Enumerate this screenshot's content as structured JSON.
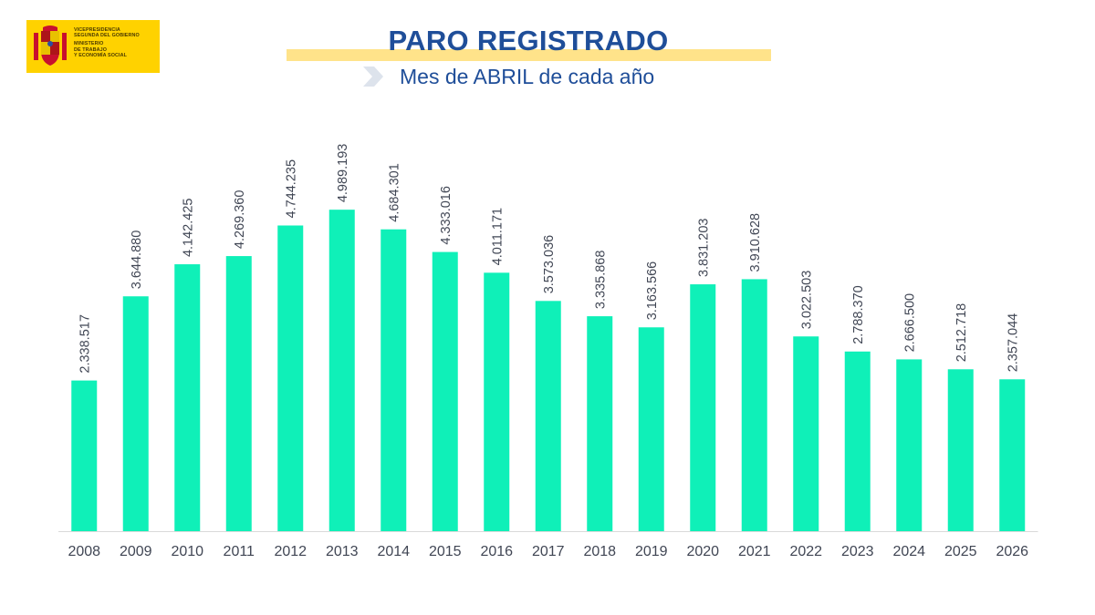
{
  "header": {
    "logo_lines": [
      "VICEPRESIDENCIA",
      "SEGUNDA DEL GOBIERNO",
      "MINISTERIO",
      "DE TRABAJO",
      "Y ECONOMÍA SOCIAL"
    ],
    "title": "PARO REGISTRADO",
    "subtitle": "Mes de ABRIL de cada año"
  },
  "colors": {
    "bar": "#0ff0b8",
    "title": "#1f4e99",
    "logo_bg": "#ffd200",
    "title_band": "#ffe38a",
    "label": "#404654",
    "axis": "#d9d9d9"
  },
  "icons": [
    "spain-coat-of-arms-icon",
    "chevron-right-icon"
  ],
  "chart_data": {
    "type": "bar",
    "title": "PARO REGISTRADO",
    "subtitle": "Mes de ABRIL de cada año",
    "categories": [
      "2008",
      "2009",
      "2010",
      "2011",
      "2012",
      "2013",
      "2014",
      "2015",
      "2016",
      "2017",
      "2018",
      "2019",
      "2020",
      "2021",
      "2022",
      "2023",
      "2024",
      "2025",
      "2026"
    ],
    "values": [
      2338517,
      3644880,
      4142425,
      4269360,
      4744235,
      4989193,
      4684301,
      4333016,
      4011171,
      3573036,
      3335868,
      3163566,
      3831203,
      3910628,
      3022503,
      2788370,
      2666500,
      2512718,
      2357044
    ],
    "value_labels": [
      "2.338.517",
      "3.644.880",
      "4.142.425",
      "4.269.360",
      "4.744.235",
      "4.989.193",
      "4.684.301",
      "4.333.016",
      "4.011.171",
      "3.573.036",
      "3.335.868",
      "3.163.566",
      "3.831.203",
      "3.910.628",
      "3.022.503",
      "2.788.370",
      "2.666.500",
      "2.512.718",
      "2.357.044"
    ],
    "ylim": [
      0,
      5000000
    ],
    "grid": false,
    "legend": "none"
  }
}
